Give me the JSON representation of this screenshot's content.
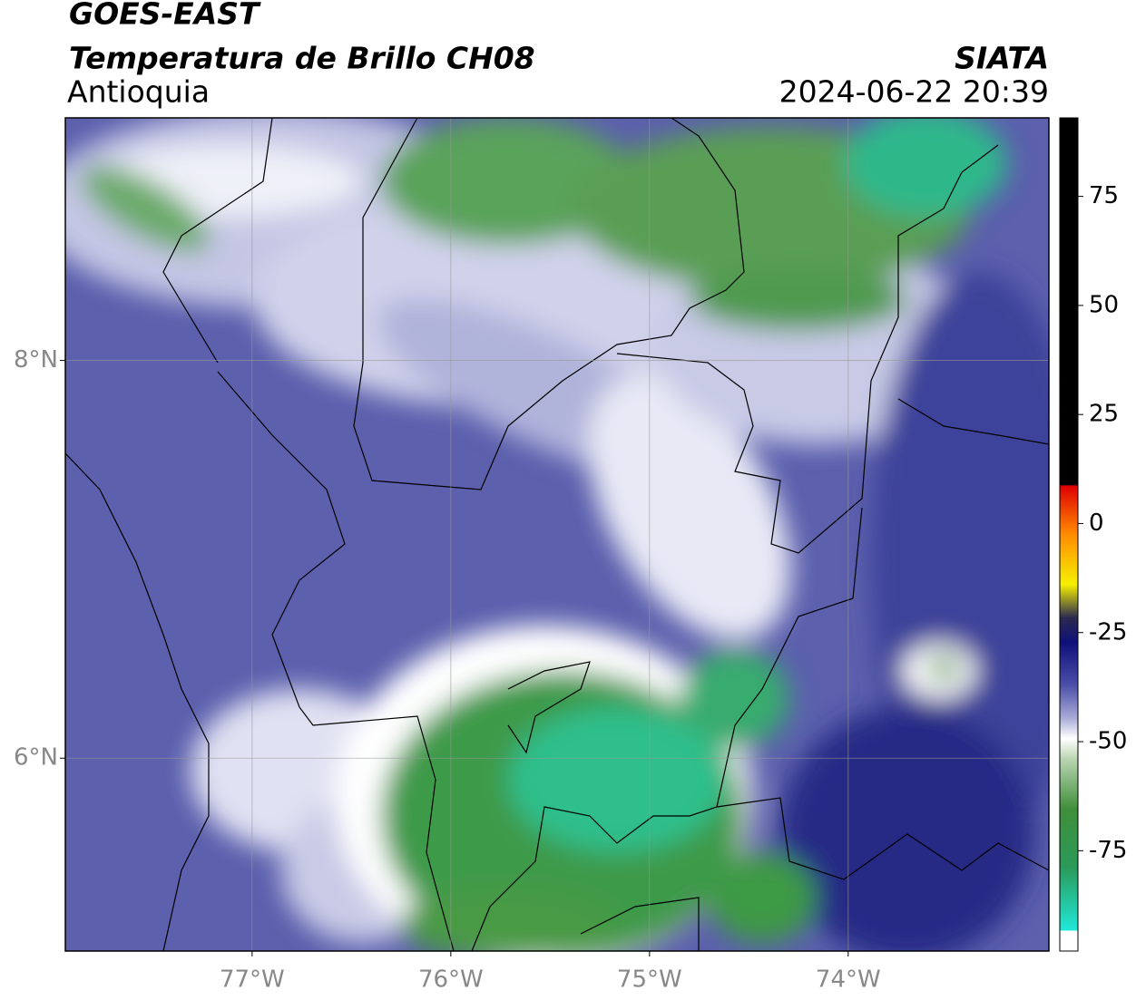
{
  "header": {
    "satellite": "GOES-EAST",
    "product": "Temperatura de Brillo CH08",
    "region": "Antioquia",
    "source": "SIATA",
    "datetime": "2024-06-22 20:39"
  },
  "map": {
    "xlim": [
      -77.94,
      -72.99
    ],
    "ylim": [
      5.03,
      9.22
    ],
    "xticks": [
      {
        "value": -77,
        "label": "77°W"
      },
      {
        "value": -76,
        "label": "76°W"
      },
      {
        "value": -75,
        "label": "75°W"
      },
      {
        "value": -74,
        "label": "74°W"
      }
    ],
    "yticks": [
      {
        "value": 6,
        "label": "6°N"
      },
      {
        "value": 8,
        "label": "8°N"
      }
    ],
    "grid": true
  },
  "colorbar": {
    "lim": [
      -98,
      93
    ],
    "ticks": [
      -75,
      -50,
      -25,
      0,
      25,
      50,
      75
    ]
  }
}
